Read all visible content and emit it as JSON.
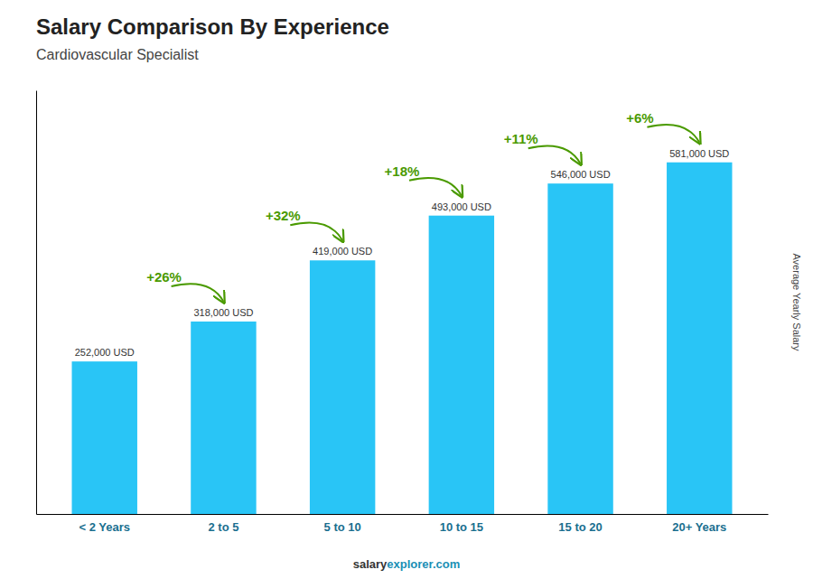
{
  "chart_data": {
    "type": "bar",
    "title": "Salary Comparison By Experience",
    "subtitle": "Cardiovascular Specialist",
    "ylabel": "Average Yearly Salary",
    "categories": [
      "< 2 Years",
      "2 to 5",
      "5 to 10",
      "10 to 15",
      "15 to 20",
      "20+ Years"
    ],
    "values": [
      252000,
      318000,
      419000,
      493000,
      546000,
      581000
    ],
    "value_labels": [
      "252,000 USD",
      "318,000 USD",
      "419,000 USD",
      "493,000 USD",
      "546,000 USD",
      "581,000 USD"
    ],
    "data_labels": true,
    "color": "#29c5f6",
    "ylim": [
      0,
      700000
    ],
    "tick_labels": "x",
    "annotations": [
      "+26%",
      "+32%",
      "+18%",
      "+11%",
      "+6%",
      "salary",
      "explorer.com"
    ]
  }
}
